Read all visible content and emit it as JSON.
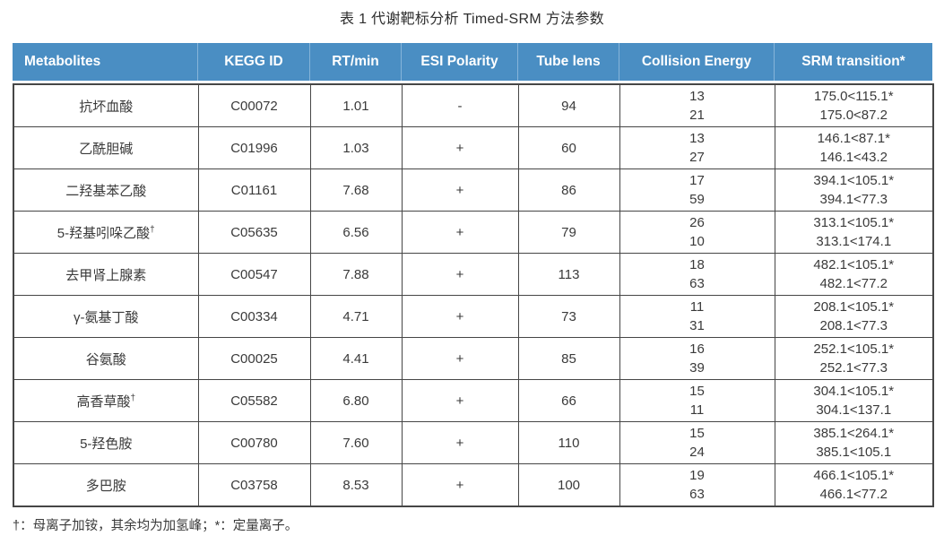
{
  "title": "表 1 代谢靶标分析 Timed-SRM 方法参数",
  "footnote": "†：母离子加铵，其余均为加氢峰；*：定量离子。",
  "colors": {
    "header_bg": "#4A8EC3",
    "header_text": "#FFFFFF",
    "header_separator": "#86B4D9",
    "grid_border": "#464646",
    "body_text": "#3A3A3A"
  },
  "table": {
    "headers": [
      "Metabolites",
      "KEGG ID",
      "RT/min",
      "ESI Polarity",
      "Tube lens",
      "Collision Energy",
      "SRM transition*"
    ],
    "rows": [
      {
        "metabolite": "抗坏血酸",
        "sup": "",
        "kegg": "C00072",
        "rt": "1.01",
        "esi": "-",
        "tube": "94",
        "collision_energy": [
          "13",
          "21"
        ],
        "srm_transitions": [
          "175.0<115.1*",
          "175.0<87.2"
        ]
      },
      {
        "metabolite": "乙酰胆碱",
        "sup": "",
        "kegg": "C01996",
        "rt": "1.03",
        "esi": "+",
        "tube": "60",
        "collision_energy": [
          "13",
          "27"
        ],
        "srm_transitions": [
          "146.1<87.1*",
          "146.1<43.2"
        ]
      },
      {
        "metabolite": "二羟基苯乙酸",
        "sup": "",
        "kegg": "C01161",
        "rt": "7.68",
        "esi": "+",
        "tube": "86",
        "collision_energy": [
          "17",
          "59"
        ],
        "srm_transitions": [
          "394.1<105.1*",
          "394.1<77.3"
        ]
      },
      {
        "metabolite": "5-羟基吲哚乙酸",
        "sup": "†",
        "kegg": "C05635",
        "rt": "6.56",
        "esi": "+",
        "tube": "79",
        "collision_energy": [
          "26",
          "10"
        ],
        "srm_transitions": [
          "313.1<105.1*",
          "313.1<174.1"
        ]
      },
      {
        "metabolite": "去甲肾上腺素",
        "sup": "",
        "kegg": "C00547",
        "rt": "7.88",
        "esi": "+",
        "tube": "113",
        "collision_energy": [
          "18",
          "63"
        ],
        "srm_transitions": [
          "482.1<105.1*",
          "482.1<77.2"
        ]
      },
      {
        "metabolite": "γ-氨基丁酸",
        "sup": "",
        "kegg": "C00334",
        "rt": "4.71",
        "esi": "+",
        "tube": "73",
        "collision_energy": [
          "11",
          "31"
        ],
        "srm_transitions": [
          "208.1<105.1*",
          "208.1<77.3"
        ]
      },
      {
        "metabolite": "谷氨酸",
        "sup": "",
        "kegg": "C00025",
        "rt": "4.41",
        "esi": "+",
        "tube": "85",
        "collision_energy": [
          "16",
          "39"
        ],
        "srm_transitions": [
          "252.1<105.1*",
          "252.1<77.3"
        ]
      },
      {
        "metabolite": "高香草酸",
        "sup": "†",
        "kegg": "C05582",
        "rt": "6.80",
        "esi": "+",
        "tube": "66",
        "collision_energy": [
          "15",
          "11"
        ],
        "srm_transitions": [
          "304.1<105.1*",
          "304.1<137.1"
        ]
      },
      {
        "metabolite": "5-羟色胺",
        "sup": "",
        "kegg": "C00780",
        "rt": "7.60",
        "esi": "+",
        "tube": "110",
        "collision_energy": [
          "15",
          "24"
        ],
        "srm_transitions": [
          "385.1<264.1*",
          "385.1<105.1"
        ]
      },
      {
        "metabolite": "多巴胺",
        "sup": "",
        "kegg": "C03758",
        "rt": "8.53",
        "esi": "+",
        "tube": "100",
        "collision_energy": [
          "19",
          "63"
        ],
        "srm_transitions": [
          "466.1<105.1*",
          "466.1<77.2"
        ]
      }
    ]
  }
}
